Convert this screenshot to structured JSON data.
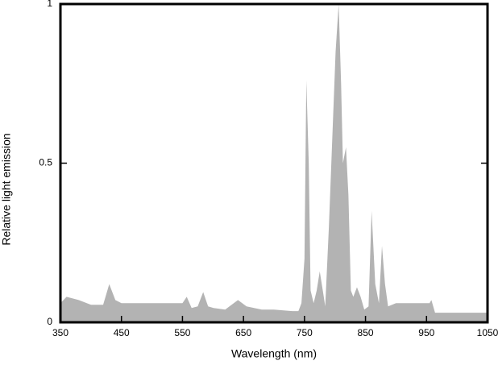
{
  "chart_data": {
    "type": "area",
    "x_label": "Wavelength (nm)",
    "y_label": "Relative light emission",
    "x": [
      350,
      360,
      380,
      400,
      420,
      430,
      440,
      450,
      520,
      550,
      557,
      565,
      575,
      584,
      592,
      601,
      620,
      641,
      655,
      680,
      700,
      730,
      740,
      745,
      750,
      753,
      757,
      760,
      765,
      770,
      775,
      780,
      784,
      790,
      796,
      801,
      806,
      810,
      813,
      818,
      822,
      826,
      830,
      836,
      842,
      848,
      855,
      860,
      866,
      872,
      877,
      882,
      887,
      900,
      940,
      955,
      958,
      964,
      1000,
      1050
    ],
    "values": [
      0.06,
      0.08,
      0.07,
      0.055,
      0.055,
      0.12,
      0.07,
      0.06,
      0.06,
      0.06,
      0.08,
      0.045,
      0.05,
      0.095,
      0.05,
      0.045,
      0.04,
      0.07,
      0.05,
      0.04,
      0.04,
      0.035,
      0.035,
      0.06,
      0.2,
      0.76,
      0.5,
      0.1,
      0.06,
      0.1,
      0.16,
      0.1,
      0.05,
      0.3,
      0.6,
      0.85,
      1.0,
      0.75,
      0.5,
      0.55,
      0.4,
      0.1,
      0.08,
      0.11,
      0.08,
      0.04,
      0.05,
      0.35,
      0.12,
      0.06,
      0.24,
      0.12,
      0.05,
      0.06,
      0.06,
      0.06,
      0.07,
      0.03,
      0.03,
      0.03
    ],
    "color": "#b3b3b3",
    "xlim": [
      350,
      1050
    ],
    "xticks": [
      350,
      450,
      550,
      650,
      750,
      850,
      950,
      1050
    ],
    "ylim": [
      0,
      1
    ],
    "yticks": [
      0,
      0.5,
      1
    ]
  }
}
